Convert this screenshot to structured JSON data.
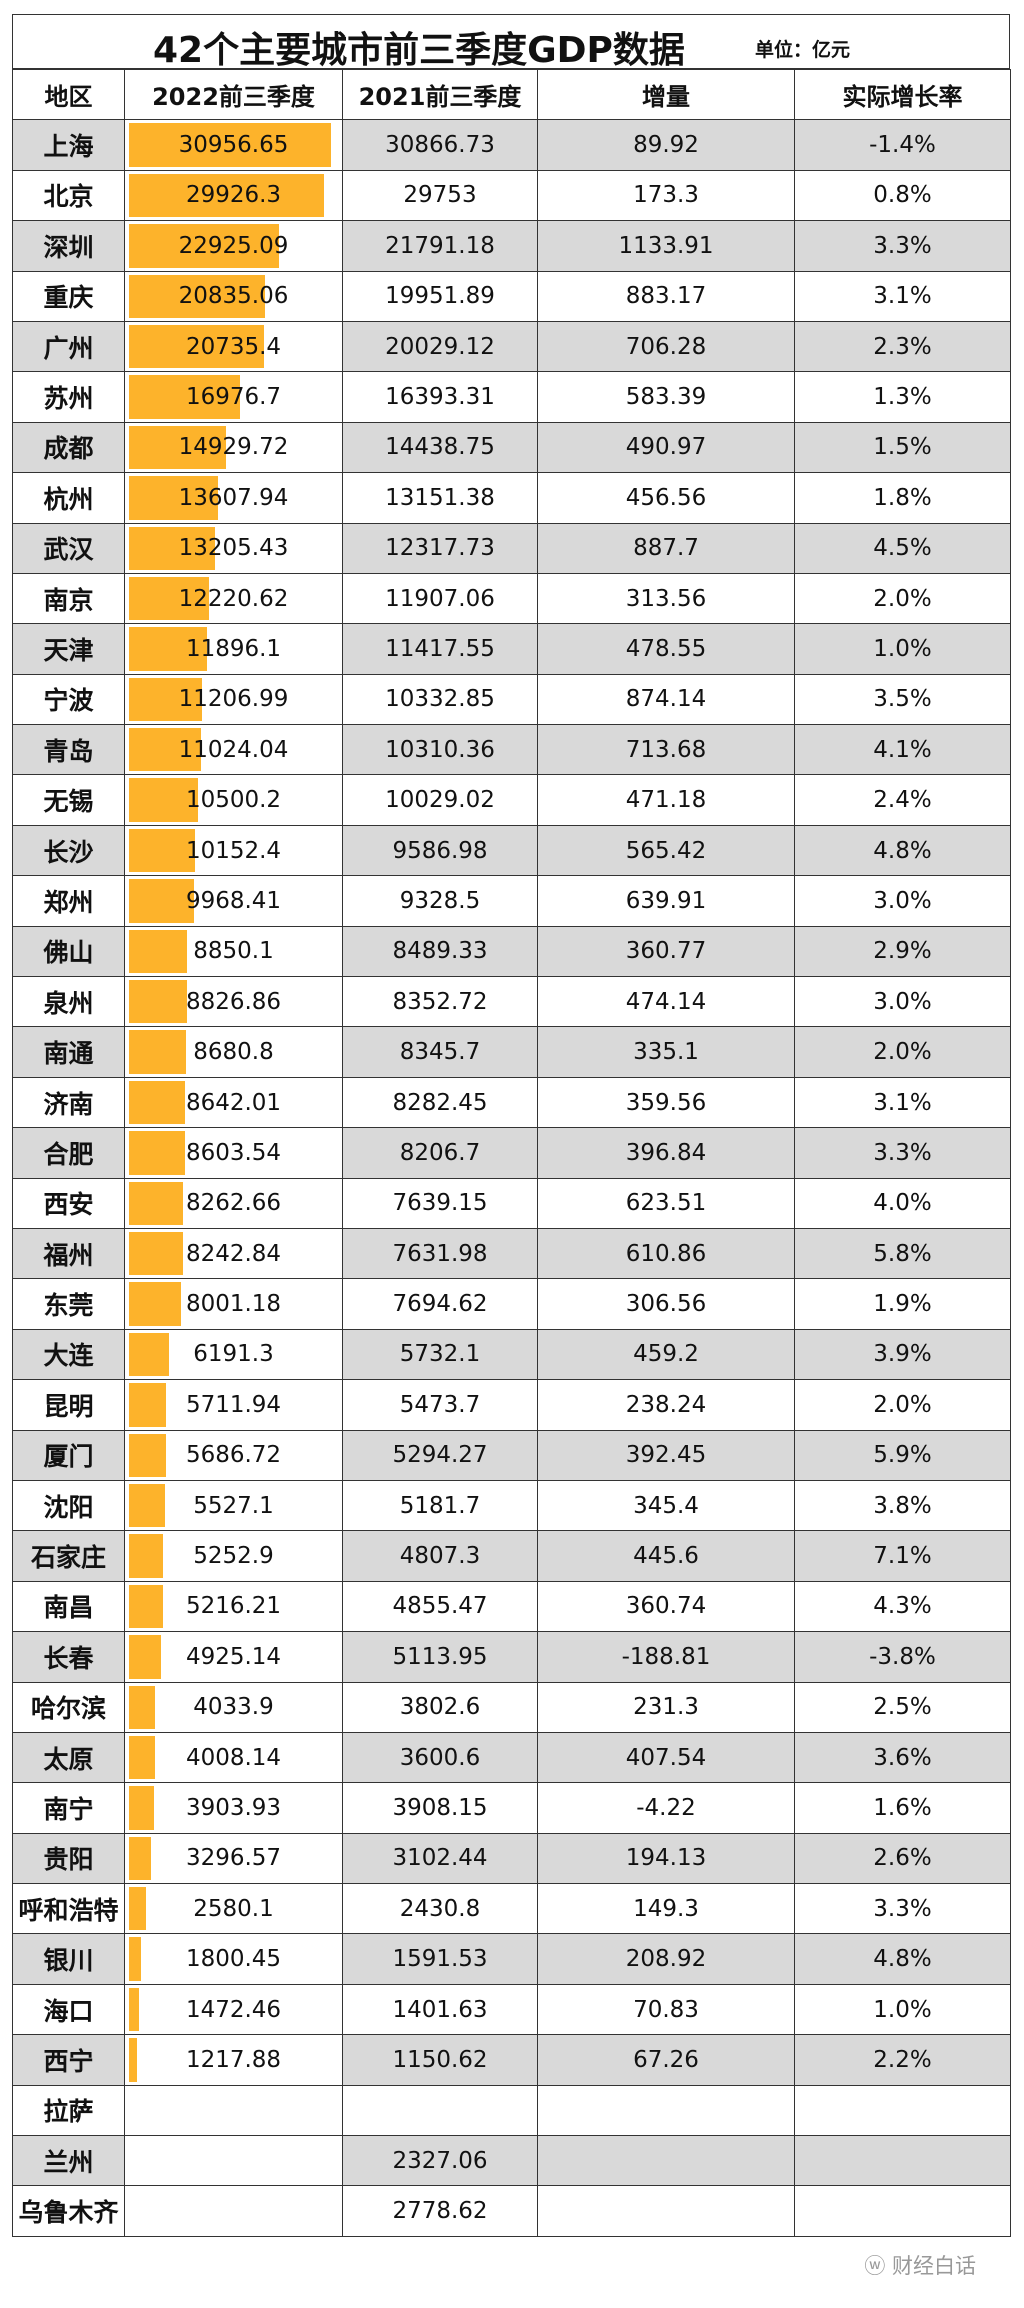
{
  "title": "42个主要城市前三季度GDP数据",
  "unit": "单位：亿元",
  "watermark": "财经白话",
  "colors": {
    "bar": "#fdb32b",
    "stripe": "#d9d9d9"
  },
  "chart_data": {
    "type": "table",
    "headers": [
      "地区",
      "2022前三季度",
      "2021前三季度",
      "增量",
      "实际增长率"
    ],
    "bar_column": "2022前三季度",
    "bar_max": 30956.65,
    "rows": [
      [
        "上海",
        "30956.65",
        "30866.73",
        "89.92",
        "-1.4%"
      ],
      [
        "北京",
        "29926.3",
        "29753",
        "173.3",
        "0.8%"
      ],
      [
        "深圳",
        "22925.09",
        "21791.18",
        "1133.91",
        "3.3%"
      ],
      [
        "重庆",
        "20835.06",
        "19951.89",
        "883.17",
        "3.1%"
      ],
      [
        "广州",
        "20735.4",
        "20029.12",
        "706.28",
        "2.3%"
      ],
      [
        "苏州",
        "16976.7",
        "16393.31",
        "583.39",
        "1.3%"
      ],
      [
        "成都",
        "14929.72",
        "14438.75",
        "490.97",
        "1.5%"
      ],
      [
        "杭州",
        "13607.94",
        "13151.38",
        "456.56",
        "1.8%"
      ],
      [
        "武汉",
        "13205.43",
        "12317.73",
        "887.7",
        "4.5%"
      ],
      [
        "南京",
        "12220.62",
        "11907.06",
        "313.56",
        "2.0%"
      ],
      [
        "天津",
        "11896.1",
        "11417.55",
        "478.55",
        "1.0%"
      ],
      [
        "宁波",
        "11206.99",
        "10332.85",
        "874.14",
        "3.5%"
      ],
      [
        "青岛",
        "11024.04",
        "10310.36",
        "713.68",
        "4.1%"
      ],
      [
        "无锡",
        "10500.2",
        "10029.02",
        "471.18",
        "2.4%"
      ],
      [
        "长沙",
        "10152.4",
        "9586.98",
        "565.42",
        "4.8%"
      ],
      [
        "郑州",
        "9968.41",
        "9328.5",
        "639.91",
        "3.0%"
      ],
      [
        "佛山",
        "8850.1",
        "8489.33",
        "360.77",
        "2.9%"
      ],
      [
        "泉州",
        "8826.86",
        "8352.72",
        "474.14",
        "3.0%"
      ],
      [
        "南通",
        "8680.8",
        "8345.7",
        "335.1",
        "2.0%"
      ],
      [
        "济南",
        "8642.01",
        "8282.45",
        "359.56",
        "3.1%"
      ],
      [
        "合肥",
        "8603.54",
        "8206.7",
        "396.84",
        "3.3%"
      ],
      [
        "西安",
        "8262.66",
        "7639.15",
        "623.51",
        "4.0%"
      ],
      [
        "福州",
        "8242.84",
        "7631.98",
        "610.86",
        "5.8%"
      ],
      [
        "东莞",
        "8001.18",
        "7694.62",
        "306.56",
        "1.9%"
      ],
      [
        "大连",
        "6191.3",
        "5732.1",
        "459.2",
        "3.9%"
      ],
      [
        "昆明",
        "5711.94",
        "5473.7",
        "238.24",
        "2.0%"
      ],
      [
        "厦门",
        "5686.72",
        "5294.27",
        "392.45",
        "5.9%"
      ],
      [
        "沈阳",
        "5527.1",
        "5181.7",
        "345.4",
        "3.8%"
      ],
      [
        "石家庄",
        "5252.9",
        "4807.3",
        "445.6",
        "7.1%"
      ],
      [
        "南昌",
        "5216.21",
        "4855.47",
        "360.74",
        "4.3%"
      ],
      [
        "长春",
        "4925.14",
        "5113.95",
        "-188.81",
        "-3.8%"
      ],
      [
        "哈尔滨",
        "4033.9",
        "3802.6",
        "231.3",
        "2.5%"
      ],
      [
        "太原",
        "4008.14",
        "3600.6",
        "407.54",
        "3.6%"
      ],
      [
        "南宁",
        "3903.93",
        "3908.15",
        "-4.22",
        "1.6%"
      ],
      [
        "贵阳",
        "3296.57",
        "3102.44",
        "194.13",
        "2.6%"
      ],
      [
        "呼和浩特",
        "2580.1",
        "2430.8",
        "149.3",
        "3.3%"
      ],
      [
        "银川",
        "1800.45",
        "1591.53",
        "208.92",
        "4.8%"
      ],
      [
        "海口",
        "1472.46",
        "1401.63",
        "70.83",
        "1.0%"
      ],
      [
        "西宁",
        "1217.88",
        "1150.62",
        "67.26",
        "2.2%"
      ],
      [
        "拉萨",
        "",
        "",
        "",
        ""
      ],
      [
        "兰州",
        "",
        "2327.06",
        "",
        ""
      ],
      [
        "乌鲁木齐",
        "",
        "2778.62",
        "",
        ""
      ]
    ]
  }
}
